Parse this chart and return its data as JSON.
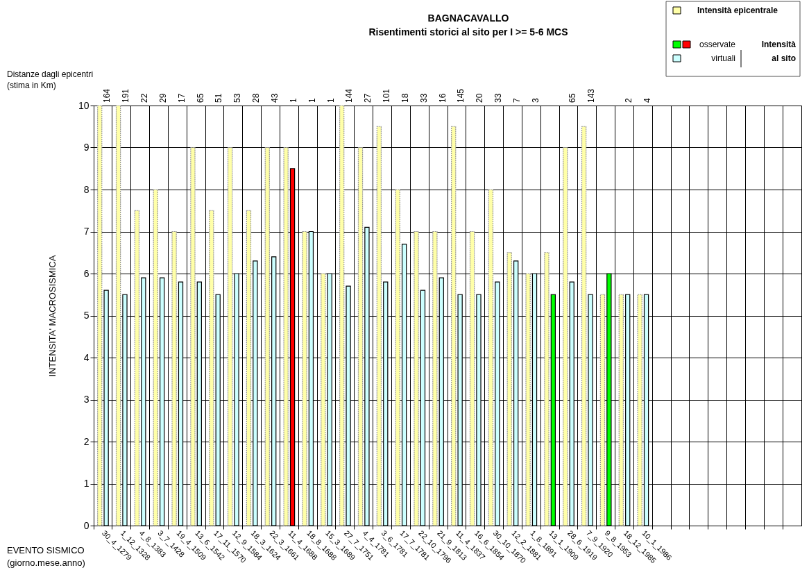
{
  "chart_data": {
    "type": "bar",
    "title": "BAGNACAVALLO",
    "subtitle": "Risentimenti storici al sito per I >= 5-6 MCS",
    "xlabel": "EVENTO SISMICO\n(giorno.mese.anno)",
    "ylabel": "INTENSITA' MACROSISMICA",
    "categories": [
      "30_4_1279",
      "1_12_1328",
      "4_8_1383",
      "3_7_1428",
      "19_4_1509",
      "13_6_1542",
      "17_11_1570",
      "12_9_1584",
      "18_3_1624",
      "22_3_1661",
      "11_4_1688",
      "18_8_1688",
      "15_3_1689",
      "27_7_1751",
      "4_4_1781",
      "3_6_1781",
      "17_7_1781",
      "22_10_1796",
      "21_9_1813",
      "11_4_1837",
      "16_6_1854",
      "30_10_1870",
      "12_2_1881",
      "1_8_1891",
      "13_1_1909",
      "28_6_1919",
      "7_9_1920",
      "9_8_1953",
      "18_12_1985",
      "10_1_1986",
      null,
      null,
      null,
      null,
      null,
      null,
      null,
      null
    ],
    "series": [
      {
        "name": "Intensità epicentrale",
        "color": "#ffffa8",
        "values": [
          10,
          10,
          7.5,
          8,
          7,
          9,
          7.5,
          9,
          7.5,
          9,
          9,
          7,
          6,
          10,
          9,
          9.5,
          8,
          7,
          7,
          9.5,
          7,
          8,
          6.5,
          6,
          6.5,
          9,
          9.5,
          5.5,
          5.5,
          5.5,
          null,
          null,
          null,
          null,
          null,
          null,
          null,
          null
        ]
      },
      {
        "name": "Intensità al sito",
        "colors": [
          "#ccffff",
          "#ccffff",
          "#ccffff",
          "#ccffff",
          "#ccffff",
          "#ccffff",
          "#ccffff",
          "#ccffff",
          "#ccffff",
          "#ccffff",
          "#ff0000",
          "#ccffff",
          "#ccffff",
          "#ccffff",
          "#ccffff",
          "#ccffff",
          "#ccffff",
          "#ccffff",
          "#ccffff",
          "#ccffff",
          "#ccffff",
          "#ccffff",
          "#ccffff",
          "#ccffff",
          "#00ff00",
          "#ccffff",
          "#ccffff",
          "#00ff00",
          "#ccffff",
          "#ccffff",
          null,
          null,
          null,
          null,
          null,
          null,
          null,
          null
        ],
        "values": [
          5.6,
          5.5,
          5.9,
          5.9,
          5.8,
          5.8,
          5.5,
          6.0,
          6.3,
          6.4,
          8.5,
          7.0,
          6.0,
          5.7,
          7.1,
          5.8,
          6.7,
          5.6,
          5.9,
          5.5,
          5.5,
          5.8,
          6.3,
          6.0,
          5.5,
          5.8,
          5.5,
          6.0,
          5.5,
          5.5,
          null,
          null,
          null,
          null,
          null,
          null,
          null,
          null
        ]
      }
    ],
    "ylim": [
      0,
      10
    ],
    "yticks": [
      0,
      1,
      2,
      3,
      4,
      5,
      6,
      7,
      8,
      9,
      10
    ],
    "grid": true,
    "legend": "top right",
    "annotations": [
      "Distanze dagli epicentri\n(stima in Km)",
      "osservate",
      "virtuali",
      "164",
      "191",
      "22",
      "29",
      "17",
      "65",
      "51",
      "53",
      "28",
      "43",
      "1",
      "1",
      "1",
      "144",
      "27",
      "101",
      "18",
      "33",
      "16",
      "145",
      "20",
      "33",
      "7",
      "3",
      "65",
      "143",
      "2",
      "4"
    ]
  }
}
